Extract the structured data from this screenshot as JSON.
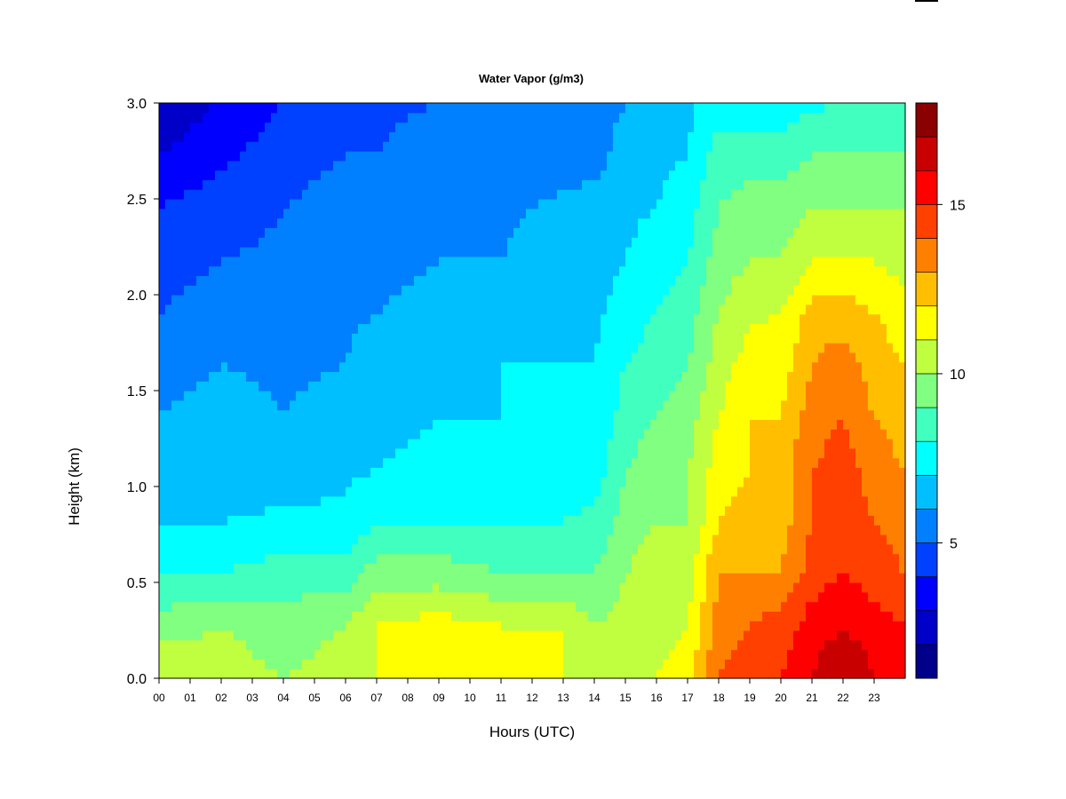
{
  "chart_data": {
    "type": "heatmap",
    "title": "Water Vapor (g/m3)",
    "xlabel": "Hours (UTC)",
    "ylabel": "Height (km)",
    "x_ticks": [
      "00",
      "01",
      "02",
      "03",
      "04",
      "05",
      "06",
      "07",
      "08",
      "09",
      "10",
      "11",
      "12",
      "13",
      "14",
      "15",
      "16",
      "17",
      "18",
      "19",
      "20",
      "21",
      "22",
      "23"
    ],
    "y_ticks": [
      "0.0",
      "0.5",
      "1.0",
      "1.5",
      "2.0",
      "2.5",
      "3.0"
    ],
    "xlim": [
      0,
      24
    ],
    "ylim": [
      0,
      3.0
    ],
    "colorbar": {
      "levels": [
        1,
        2,
        3,
        4,
        5,
        6,
        7,
        8,
        9,
        10,
        11,
        12,
        13,
        14,
        15,
        16,
        17,
        18
      ],
      "tick_labels": [
        "5",
        "10",
        "15"
      ],
      "tick_values": [
        5,
        10,
        15
      ],
      "colors": [
        "#00008b",
        "#0000c8",
        "#0000ff",
        "#0040ff",
        "#0080ff",
        "#00bfff",
        "#00ffff",
        "#40ffbf",
        "#80ff80",
        "#bfff40",
        "#ffff00",
        "#ffbf00",
        "#ff8000",
        "#ff4000",
        "#ff0000",
        "#c80000",
        "#8b0000"
      ]
    },
    "profiles": [
      {
        "hour": 0,
        "v": [
          11.0,
          9.5,
          8.0,
          7.0,
          6.5,
          6.0,
          5.5,
          5.0,
          4.5,
          4.0,
          3.0,
          2.0
        ]
      },
      {
        "hour": 2,
        "v": [
          10.5,
          10.0,
          8.0,
          7.0,
          6.5,
          6.5,
          6.0,
          5.5,
          5.0,
          4.5,
          3.8,
          3.2
        ]
      },
      {
        "hour": 4,
        "v": [
          10.0,
          9.5,
          8.5,
          7.2,
          6.5,
          6.0,
          5.8,
          5.6,
          5.2,
          5.0,
          4.5,
          4.0
        ]
      },
      {
        "hour": 6,
        "v": [
          10.5,
          10.0,
          8.5,
          7.2,
          6.8,
          6.5,
          6.0,
          5.8,
          5.5,
          5.5,
          5.0,
          4.5
        ]
      },
      {
        "hour": 7,
        "v": [
          11.0,
          11.0,
          9.5,
          8.0,
          7.0,
          6.8,
          6.5,
          6.0,
          5.8,
          5.5,
          5.0,
          4.8
        ]
      },
      {
        "hour": 9,
        "v": [
          11.5,
          11.5,
          9.5,
          8.0,
          7.2,
          7.0,
          6.5,
          6.2,
          6.0,
          5.8,
          5.5,
          5.0
        ]
      },
      {
        "hour": 11,
        "v": [
          11.5,
          11.0,
          9.0,
          8.0,
          7.5,
          7.0,
          7.0,
          6.5,
          6.0,
          5.8,
          5.5,
          5.0
        ]
      },
      {
        "hour": 13,
        "v": [
          11.0,
          11.0,
          9.0,
          8.0,
          7.5,
          7.0,
          7.0,
          6.8,
          6.5,
          6.2,
          5.5,
          5.0
        ]
      },
      {
        "hour": 14,
        "v": [
          10.5,
          10.0,
          9.0,
          8.2,
          7.5,
          7.0,
          7.0,
          6.8,
          6.5,
          6.5,
          5.5,
          5.5
        ]
      },
      {
        "hour": 15,
        "v": [
          11.0,
          10.5,
          10.0,
          9.5,
          9.0,
          8.5,
          8.0,
          7.5,
          7.0,
          6.8,
          6.5,
          6.0
        ]
      },
      {
        "hour": 16,
        "v": [
          11.0,
          10.5,
          10.5,
          10.0,
          9.5,
          9.0,
          8.5,
          8.0,
          7.5,
          7.0,
          6.8,
          6.5
        ]
      },
      {
        "hour": 17,
        "v": [
          11.5,
          11.0,
          10.5,
          10.0,
          10.0,
          9.5,
          9.0,
          8.5,
          8.0,
          7.5,
          7.0,
          6.8
        ]
      },
      {
        "hour": 18,
        "v": [
          14.0,
          13.5,
          13.0,
          12.0,
          11.5,
          11.0,
          10.5,
          10.0,
          9.5,
          9.0,
          8.5,
          7.5
        ]
      },
      {
        "hour": 19,
        "v": [
          14.5,
          14.0,
          13.0,
          12.5,
          12.0,
          12.0,
          11.5,
          10.8,
          10.0,
          9.5,
          8.5,
          7.5
        ]
      },
      {
        "hour": 20,
        "v": [
          15.0,
          14.5,
          13.0,
          12.5,
          12.5,
          12.0,
          11.5,
          11.0,
          10.0,
          9.5,
          8.5,
          7.5
        ]
      },
      {
        "hour": 21,
        "v": [
          16.0,
          15.5,
          14.5,
          14.0,
          14.0,
          13.5,
          13.0,
          12.5,
          11.0,
          10.0,
          9.0,
          7.8
        ]
      },
      {
        "hour": 22,
        "v": [
          17.0,
          16.0,
          15.0,
          14.5,
          14.5,
          14.0,
          13.5,
          12.5,
          11.0,
          10.0,
          9.0,
          8.0
        ]
      },
      {
        "hour": 23,
        "v": [
          16.0,
          15.5,
          14.5,
          14.0,
          13.5,
          13.0,
          12.5,
          12.0,
          11.0,
          10.0,
          9.0,
          8.0
        ]
      },
      {
        "hour": 24,
        "v": [
          15.5,
          15.0,
          14.0,
          13.5,
          13.0,
          12.5,
          12.0,
          11.5,
          10.5,
          10.0,
          9.0,
          8.0
        ]
      }
    ]
  }
}
